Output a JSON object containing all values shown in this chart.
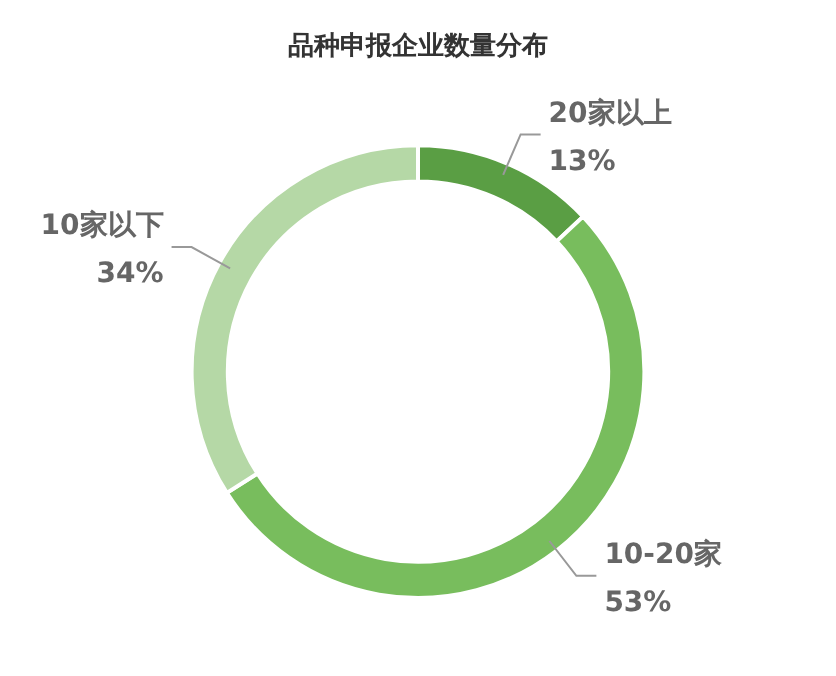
{
  "chart_data": {
    "type": "donut",
    "title": "品种申报企业数量分布",
    "categories": [
      "20家以上",
      "10-20家",
      "10家以下"
    ],
    "values": [
      13,
      53,
      34
    ],
    "colors": [
      "#5a9e44",
      "#78bd5d",
      "#b5d8a6"
    ],
    "value_labels": [
      "13%",
      "53%",
      "34%"
    ],
    "legend": false
  }
}
